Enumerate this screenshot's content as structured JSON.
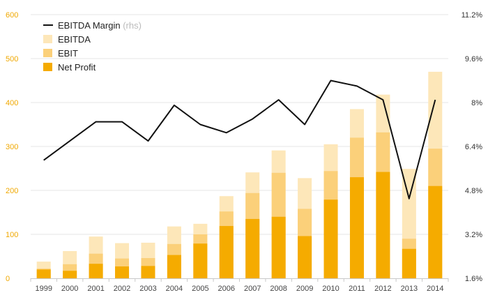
{
  "chart_data": {
    "type": "bar",
    "categories": [
      "1999",
      "2000",
      "2001",
      "2002",
      "2003",
      "2004",
      "2005",
      "2006",
      "2007",
      "2008",
      "2009",
      "2010",
      "2011",
      "2012",
      "2013",
      "2014"
    ],
    "series": [
      {
        "name": "Net Profit",
        "kind": "bar",
        "color": "#f5ab00",
        "values": [
          20,
          17,
          33,
          27,
          28,
          53,
          79,
          119,
          135,
          140,
          96,
          179,
          230,
          242,
          67,
          210
        ]
      },
      {
        "name": "EBIT",
        "kind": "bar",
        "color": "#fbd07a",
        "values": [
          22,
          32,
          56,
          45,
          46,
          78,
          100,
          152,
          194,
          240,
          158,
          244,
          320,
          332,
          90,
          295
        ]
      },
      {
        "name": "EBITDA",
        "kind": "bar",
        "color": "#fde7b9",
        "values": [
          38,
          62,
          95,
          80,
          81,
          118,
          124,
          187,
          241,
          291,
          228,
          305,
          385,
          418,
          249,
          470
        ]
      },
      {
        "name": "EBITDA Margin",
        "kind": "line",
        "axis": "right",
        "color": "#111111",
        "values": [
          5.9,
          6.6,
          7.3,
          7.3,
          6.6,
          7.9,
          7.2,
          6.9,
          7.4,
          8.1,
          7.2,
          8.8,
          8.6,
          8.1,
          4.5,
          8.1
        ]
      }
    ],
    "y_left": {
      "ticks": [
        "0",
        "100",
        "200",
        "300",
        "400",
        "500",
        "600"
      ],
      "ylim": [
        0,
        600
      ]
    },
    "y_right": {
      "ticks": [
        "1.6%",
        "3.2%",
        "4.8%",
        "6.4%",
        "8%",
        "9.6%",
        "11.2%"
      ],
      "ylim": [
        1.6,
        11.2
      ]
    },
    "legend": {
      "position": "top-left",
      "entries": [
        {
          "label": "EBITDA Margin",
          "suffix": "(rhs)",
          "type": "line",
          "color": "#111111"
        },
        {
          "label": "EBITDA",
          "type": "box",
          "color": "#fde7b9"
        },
        {
          "label": "EBIT",
          "type": "box",
          "color": "#fbd07a"
        },
        {
          "label": "Net Profit",
          "type": "box",
          "color": "#f5ab00"
        }
      ]
    },
    "grid": true,
    "colors": {
      "left_axis": "#f0a800",
      "grid": "#e6e6e6"
    }
  }
}
